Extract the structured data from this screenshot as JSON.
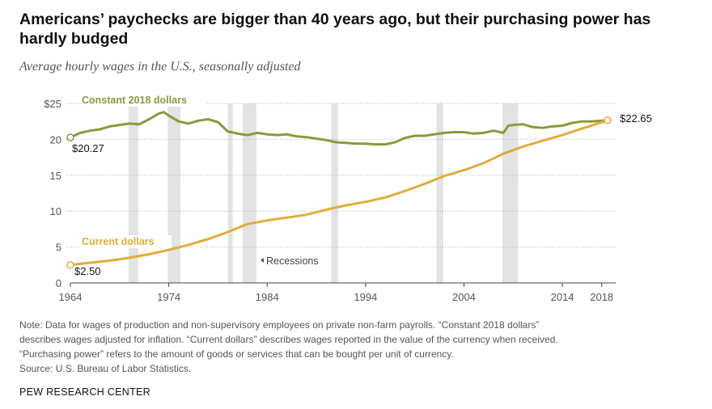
{
  "title": "Americans’ paychecks are bigger than 40 years ago, but their purchasing power has hardly budged",
  "subtitle": "Average hourly wages in the U.S., seasonally adjusted",
  "notes": [
    "Note: Data for wages of production and non-supervisory employees on private non-farm payrolls. “Constant 2018 dollars”",
    "describes wages adjusted for inflation. “Current dollars” describes wages reported in the value of the currency when received.",
    "“Purchasing power” refers to the amount of goods or services that can be bought per unit of currency.",
    "Source: U.S. Bureau of Labor Statistics."
  ],
  "brand": "PEW RESEARCH CENTER",
  "colors": {
    "constant": "#8a9a3c",
    "current": "#e0ad3a",
    "recession": "#e3e3e3",
    "grid": "#b5b5b5",
    "axis": "#444444"
  },
  "chart_data": {
    "type": "line",
    "title": "Americans’ paychecks are bigger than 40 years ago, but their purchasing power has hardly budged",
    "subtitle": "Average hourly wages in the U.S., seasonally adjusted",
    "xlabel": "",
    "ylabel": "",
    "xlim": [
      1964,
      2019
    ],
    "ylim": [
      0,
      25
    ],
    "x_ticks": [
      1964,
      1974,
      1984,
      1994,
      2004,
      2014,
      2018
    ],
    "y_ticks": [
      {
        "value": 0,
        "label": "0"
      },
      {
        "value": 5,
        "label": "5"
      },
      {
        "value": 10,
        "label": "10"
      },
      {
        "value": 15,
        "label": "15"
      },
      {
        "value": 20,
        "label": "20"
      },
      {
        "value": 25,
        "label": "$25"
      }
    ],
    "recession_label": "Recessions",
    "recessions": [
      [
        1969.9,
        1970.9
      ],
      [
        1973.9,
        1975.2
      ],
      [
        1980.0,
        1980.5
      ],
      [
        1981.5,
        1982.9
      ],
      [
        1990.5,
        1991.2
      ],
      [
        2001.2,
        2001.9
      ],
      [
        2007.9,
        2009.5
      ]
    ],
    "series": [
      {
        "name": "Constant 2018 dollars",
        "color": "#8a9a3c",
        "start_label": "$20.27",
        "end_label": "",
        "points": [
          [
            1964,
            20.27
          ],
          [
            1965,
            20.9
          ],
          [
            1966,
            21.2
          ],
          [
            1967,
            21.4
          ],
          [
            1968,
            21.8
          ],
          [
            1969,
            22.0
          ],
          [
            1970,
            22.2
          ],
          [
            1971,
            22.1
          ],
          [
            1972,
            22.8
          ],
          [
            1973,
            23.6
          ],
          [
            1973.5,
            23.8
          ],
          [
            1974,
            23.3
          ],
          [
            1975,
            22.5
          ],
          [
            1976,
            22.2
          ],
          [
            1977,
            22.6
          ],
          [
            1978,
            22.8
          ],
          [
            1979,
            22.4
          ],
          [
            1980,
            21.1
          ],
          [
            1981,
            20.8
          ],
          [
            1982,
            20.6
          ],
          [
            1983,
            20.9
          ],
          [
            1984,
            20.7
          ],
          [
            1985,
            20.6
          ],
          [
            1986,
            20.7
          ],
          [
            1987,
            20.4
          ],
          [
            1988,
            20.3
          ],
          [
            1989,
            20.1
          ],
          [
            1990,
            19.9
          ],
          [
            1991,
            19.6
          ],
          [
            1992,
            19.5
          ],
          [
            1993,
            19.4
          ],
          [
            1994,
            19.4
          ],
          [
            1995,
            19.3
          ],
          [
            1996,
            19.3
          ],
          [
            1997,
            19.6
          ],
          [
            1998,
            20.2
          ],
          [
            1999,
            20.5
          ],
          [
            2000,
            20.5
          ],
          [
            2001,
            20.7
          ],
          [
            2002,
            20.9
          ],
          [
            2003,
            21.0
          ],
          [
            2004,
            21.0
          ],
          [
            2005,
            20.8
          ],
          [
            2006,
            20.9
          ],
          [
            2007,
            21.2
          ],
          [
            2008,
            20.9
          ],
          [
            2008.5,
            21.9
          ],
          [
            2009,
            22.0
          ],
          [
            2010,
            22.1
          ],
          [
            2011,
            21.7
          ],
          [
            2012,
            21.6
          ],
          [
            2013,
            21.8
          ],
          [
            2014,
            21.9
          ],
          [
            2015,
            22.3
          ],
          [
            2016,
            22.5
          ],
          [
            2017,
            22.5
          ],
          [
            2018,
            22.6
          ],
          [
            2018.6,
            22.65
          ]
        ]
      },
      {
        "name": "Current dollars",
        "color": "#e0ad3a",
        "start_label": "$2.50",
        "end_label": "$22.65",
        "points": [
          [
            1964,
            2.5
          ],
          [
            1966,
            2.8
          ],
          [
            1968,
            3.1
          ],
          [
            1970,
            3.5
          ],
          [
            1972,
            4.0
          ],
          [
            1974,
            4.6
          ],
          [
            1976,
            5.3
          ],
          [
            1978,
            6.1
          ],
          [
            1980,
            7.1
          ],
          [
            1982,
            8.2
          ],
          [
            1984,
            8.7
          ],
          [
            1986,
            9.1
          ],
          [
            1988,
            9.5
          ],
          [
            1990,
            10.2
          ],
          [
            1992,
            10.8
          ],
          [
            1994,
            11.3
          ],
          [
            1996,
            11.9
          ],
          [
            1998,
            12.8
          ],
          [
            2000,
            13.8
          ],
          [
            2002,
            14.9
          ],
          [
            2004,
            15.7
          ],
          [
            2006,
            16.7
          ],
          [
            2008,
            18.0
          ],
          [
            2010,
            19.0
          ],
          [
            2012,
            19.8
          ],
          [
            2014,
            20.6
          ],
          [
            2016,
            21.5
          ],
          [
            2018.6,
            22.65
          ]
        ]
      }
    ]
  }
}
